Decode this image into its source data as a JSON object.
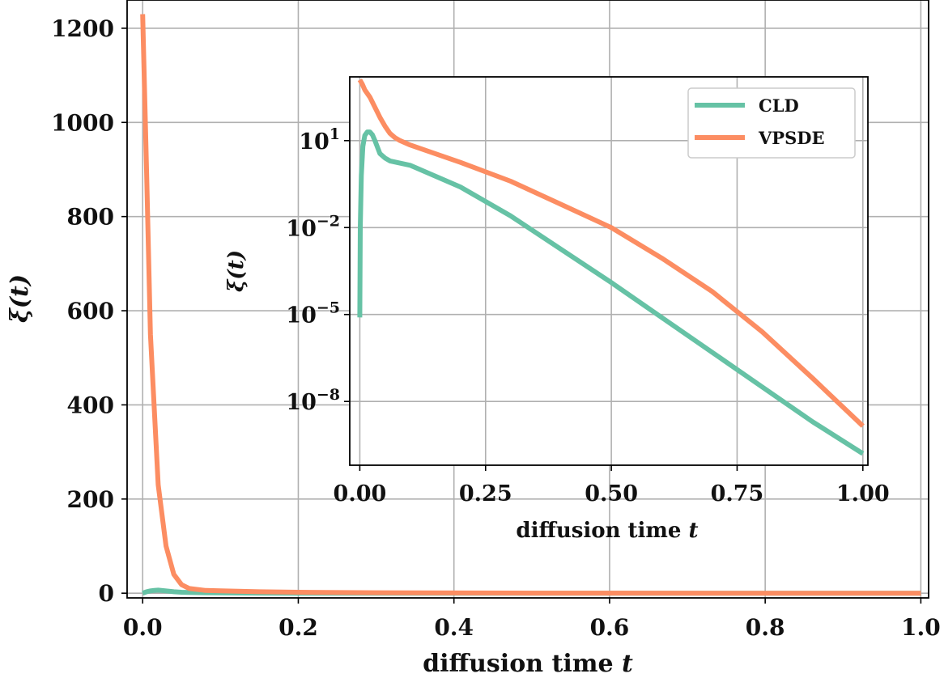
{
  "chart_data": [
    {
      "type": "line",
      "xlabel": "diffusion time",
      "xlabel_var": "t",
      "ylabel": "ξ(t)",
      "xlim": [
        -0.02,
        1.01
      ],
      "ylim": [
        -10,
        1260
      ],
      "xticks": [
        0.0,
        0.2,
        0.4,
        0.6,
        0.8,
        1.0
      ],
      "xtick_labels": [
        "0.0",
        "0.2",
        "0.4",
        "0.6",
        "0.8",
        "1.0"
      ],
      "yticks": [
        0,
        200,
        400,
        600,
        800,
        1000,
        1200
      ],
      "ytick_labels": [
        "0",
        "200",
        "400",
        "600",
        "800",
        "1000",
        "1200"
      ],
      "grid": true,
      "series": [
        {
          "name": "CLD",
          "color": "#66c2a5",
          "x": [
            0.0,
            0.005,
            0.01,
            0.015,
            0.02,
            0.03,
            0.04,
            0.05,
            0.06,
            0.08,
            0.1,
            0.15,
            0.2,
            0.3,
            0.5,
            0.75,
            1.0
          ],
          "y": [
            0.0,
            3,
            5,
            6,
            6.5,
            5,
            3,
            2,
            1.5,
            1.0,
            0.7,
            0.2,
            0.05,
            0.005,
            0.0001,
            0,
            0
          ]
        },
        {
          "name": "VPSDE",
          "color": "#fc8d62",
          "x": [
            0.0,
            0.005,
            0.01,
            0.02,
            0.03,
            0.04,
            0.05,
            0.06,
            0.08,
            0.1,
            0.15,
            0.2,
            0.3,
            0.5,
            0.75,
            1.0
          ],
          "y": [
            1230,
            900,
            550,
            230,
            100,
            40,
            18,
            10,
            6,
            5,
            3,
            2,
            1,
            0.1,
            0.001,
            0
          ]
        }
      ]
    },
    {
      "type": "line",
      "inset": true,
      "yscale": "log",
      "xlabel": "diffusion time",
      "xlabel_var": "t",
      "ylabel": "ξ(t)",
      "xlim": [
        -0.02,
        1.01
      ],
      "ylim_log10": [
        -10.2,
        3.2
      ],
      "xticks": [
        0.0,
        0.25,
        0.5,
        0.75,
        1.0
      ],
      "xtick_labels": [
        "0.00",
        "0.25",
        "0.50",
        "0.75",
        "1.00"
      ],
      "yticks_log10": [
        1,
        -2,
        -5,
        -8
      ],
      "ytick_base": "10",
      "ytick_exps": [
        "1",
        "−2",
        "−5",
        "−8"
      ],
      "grid": true,
      "legend_position": "top-right",
      "series": [
        {
          "name": "CLD",
          "color": "#66c2a5",
          "x": [
            0.0,
            0.001,
            0.003,
            0.006,
            0.01,
            0.015,
            0.02,
            0.025,
            0.03,
            0.04,
            0.05,
            0.06,
            0.1,
            0.2,
            0.3,
            0.4,
            0.5,
            0.6,
            0.7,
            0.8,
            0.9,
            1.0
          ],
          "log10_y": [
            -5.1,
            -2.0,
            -0.2,
            0.8,
            1.18,
            1.3,
            1.3,
            1.2,
            1.0,
            0.55,
            0.4,
            0.3,
            0.15,
            -0.6,
            -1.6,
            -2.75,
            -3.9,
            -5.1,
            -6.3,
            -7.5,
            -8.7,
            -9.8
          ]
        },
        {
          "name": "VPSDE",
          "color": "#fc8d62",
          "x": [
            0.0,
            0.005,
            0.01,
            0.02,
            0.03,
            0.04,
            0.05,
            0.06,
            0.07,
            0.08,
            0.1,
            0.15,
            0.2,
            0.3,
            0.4,
            0.5,
            0.6,
            0.7,
            0.8,
            0.9,
            1.0
          ],
          "log10_y": [
            3.1,
            2.95,
            2.75,
            2.5,
            2.15,
            1.8,
            1.5,
            1.25,
            1.1,
            1.0,
            0.85,
            0.55,
            0.25,
            -0.4,
            -1.2,
            -2.0,
            -3.05,
            -4.2,
            -5.6,
            -7.2,
            -8.85
          ]
        }
      ]
    }
  ]
}
